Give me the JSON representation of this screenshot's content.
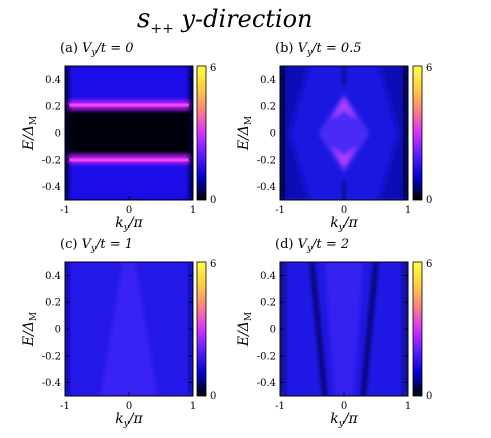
{
  "figure": {
    "title_main": "s",
    "title_sub": "++",
    "title_rest": " y-direction"
  },
  "colorscale": {
    "stops": [
      "#000000",
      "#0000cc",
      "#5a1cff",
      "#d830ff",
      "#ff8080",
      "#ffd040",
      "#ffff40"
    ],
    "ticks": [
      "6",
      "0"
    ]
  },
  "chart_data": [
    {
      "type": "heatmap",
      "title": "(a) V_y/t = 0",
      "title_prefix": "(a) ",
      "title_var": "V",
      "title_sub": "y",
      "title_suffix": "/t = 0",
      "xlabel_var": "k",
      "xlabel_sub": "y",
      "xlabel_rest": "/π",
      "ylabel": "E/Δ_M",
      "xticks": [
        "-1",
        "0",
        "1"
      ],
      "yticks": [
        "0.4",
        "0.2",
        "0",
        "-0.2",
        "-0.4"
      ],
      "ylim": [
        -0.5,
        0.5
      ],
      "xlim": [
        -1,
        1
      ],
      "zlim": [
        0,
        6
      ],
      "features": "bright horizontal bands at E = ±0.2 across |k_y| < ~0.9; dark gap between; blue continuum beyond"
    },
    {
      "type": "heatmap",
      "title": "(b) V_y/t = 0.5",
      "title_prefix": "(b) ",
      "title_var": "V",
      "title_sub": "y",
      "title_suffix": "/t = 0.5",
      "xlabel_var": "k",
      "xlabel_sub": "y",
      "xlabel_rest": "/π",
      "ylabel": "E/Δ_M",
      "xticks": [
        "-1",
        "0",
        "1"
      ],
      "yticks": [
        "0.4",
        "0.2",
        "0",
        "-0.2",
        "-0.4"
      ],
      "ylim": [
        -0.5,
        0.5
      ],
      "xlim": [
        -1,
        1
      ],
      "zlim": [
        0,
        6
      ],
      "features": "diamond-shaped bright structure centered at k_y = 0 with peaks near E = ±0.3"
    },
    {
      "type": "heatmap",
      "title": "(c) V_y/t = 1",
      "title_prefix": "(c) ",
      "title_var": "V",
      "title_sub": "y",
      "title_suffix": "/t = 1",
      "xlabel_var": "k",
      "xlabel_sub": "y",
      "xlabel_rest": "/π",
      "ylabel": "E/Δ_M",
      "xticks": [
        "-1",
        "0",
        "1"
      ],
      "yticks": [
        "0.4",
        "0.2",
        "0",
        "-0.2",
        "-0.4"
      ],
      "ylim": [
        -0.5,
        0.5
      ],
      "xlim": [
        -1,
        1
      ],
      "zlim": [
        0,
        6
      ],
      "features": "nearly uniform blue with faint lighter wedge around k_y = 0"
    },
    {
      "type": "heatmap",
      "title": "(d) V_y/t = 2",
      "title_prefix": "(d) ",
      "title_var": "V",
      "title_sub": "y",
      "title_suffix": "/t = 2",
      "xlabel_var": "k",
      "xlabel_sub": "y",
      "xlabel_rest": "/π",
      "ylabel": "E/Δ_M",
      "xticks": [
        "-1",
        "0",
        "1"
      ],
      "yticks": [
        "0.4",
        "0.2",
        "0",
        "-0.2",
        "-0.4"
      ],
      "ylim": [
        -0.5,
        0.5
      ],
      "xlim": [
        -1,
        1
      ],
      "zlim": [
        0,
        6
      ],
      "features": "blue background with two dark diagonal lines crossing near k_y = ±0.4 and faint purple regions"
    }
  ]
}
